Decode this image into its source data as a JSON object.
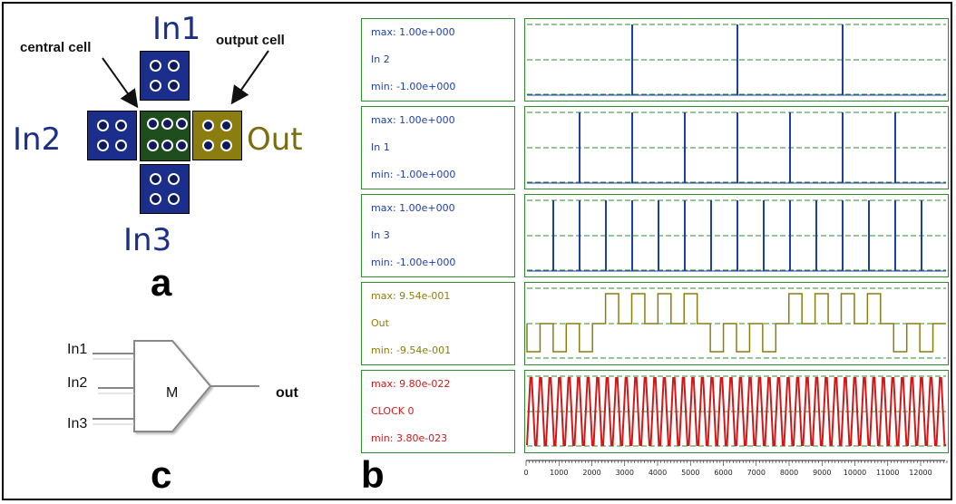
{
  "panel_a": {
    "letter": "a",
    "labels": {
      "in1": "In1",
      "in2": "In2",
      "in3": "In3",
      "out": "Out"
    },
    "callouts": {
      "central": "central cell",
      "output": "output cell"
    },
    "colors": {
      "input_cell": "#1c2e8c",
      "central_cell": "#1e4d1e",
      "output_cell": "#8b7d10"
    }
  },
  "panel_c": {
    "letter": "c",
    "inputs": [
      "In1",
      "In2",
      "In3"
    ],
    "gate": "M",
    "output": "out"
  },
  "panel_b": {
    "letter": "b",
    "traces": [
      {
        "max": "max: 1.00e+000",
        "name": "In 2",
        "min": "min: -1.00e+000",
        "color": "#1f3fa8"
      },
      {
        "max": "max: 1.00e+000",
        "name": "In 1",
        "min": "min: -1.00e+000",
        "color": "#1f3fa8"
      },
      {
        "max": "max: 1.00e+000",
        "name": "In 3",
        "min": "min: -1.00e+000",
        "color": "#1f3fa8"
      },
      {
        "max": "max: 9.54e-001",
        "name": "Out",
        "min": "min: -9.54e-001",
        "color": "#8b7d10"
      },
      {
        "max": "max: 9.80e-022",
        "name": "CLOCK 0",
        "min": "min: 3.80e-023",
        "color": "#d01818"
      }
    ],
    "axis_ticks": [
      "0",
      "1000",
      "2000",
      "3000",
      "4000",
      "5000",
      "6000",
      "7000",
      "8000",
      "9000",
      "10000",
      "11000",
      "12000"
    ],
    "grid_color": "#2e8b2e"
  },
  "chart_data": {
    "type": "line",
    "x_range": [
      0,
      12800
    ],
    "series": [
      {
        "name": "In 2",
        "transitions_x": [
          3200,
          6400,
          9600
        ]
      },
      {
        "name": "In 1",
        "transitions_x": [
          1600,
          3200,
          4800,
          6400,
          8000,
          9600,
          11200
        ]
      },
      {
        "name": "In 3",
        "transitions_x": [
          800,
          1600,
          2400,
          3200,
          4000,
          4800,
          5600,
          6400,
          7200,
          8000,
          8800,
          9600,
          10400,
          11200,
          12000
        ]
      },
      {
        "name": "Out",
        "levels": [
          -1,
          -1,
          -1,
          1,
          1,
          1,
          1,
          -1,
          -1,
          -1,
          1,
          1,
          1,
          1,
          -1,
          -1
        ]
      },
      {
        "name": "CLOCK 0",
        "pulses": 44
      }
    ]
  }
}
